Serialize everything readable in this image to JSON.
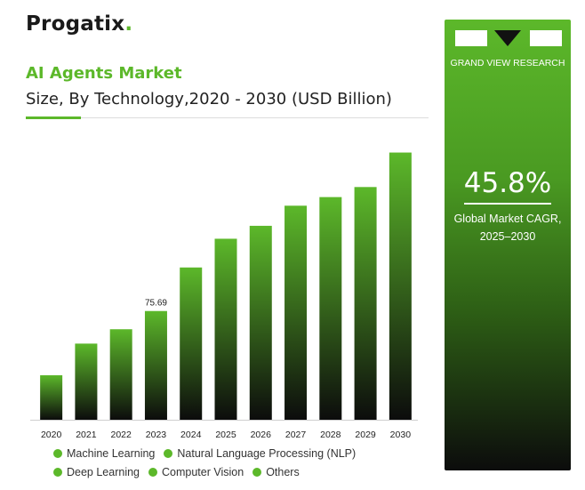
{
  "brand": {
    "name_main": "Progati",
    "name_x": "x",
    "name_dot": "."
  },
  "header": {
    "title": "AI Agents Market",
    "subtitle": "Size, By Technology,2020 - 2030 (USD Billion)"
  },
  "chart_data": {
    "type": "bar",
    "categories": [
      "2020",
      "2021",
      "2022",
      "2023",
      "2024",
      "2025",
      "2026",
      "2027",
      "2028",
      "2029",
      "2030"
    ],
    "values": [
      31,
      53,
      63,
      75.69,
      106,
      126,
      135,
      149,
      155,
      162,
      186
    ],
    "data_labels": [
      null,
      null,
      null,
      "75.69",
      null,
      null,
      null,
      null,
      null,
      null,
      null
    ],
    "ylim": [
      0,
      195
    ],
    "bar_color_top": "#5cb82a",
    "bar_color_bottom": "#0c0c0c",
    "grid": false,
    "legend_position": "bottom",
    "legend": [
      "Machine Learning",
      "Natural Language Processing (NLP)",
      "Deep Learning",
      "Computer Vision",
      "Others"
    ]
  },
  "side_panel": {
    "source": "GRAND VIEW RESEARCH",
    "cagr_value": "45.8%",
    "cagr_label_1": "Global Market CAGR,",
    "cagr_label_2": "2025–2030"
  }
}
